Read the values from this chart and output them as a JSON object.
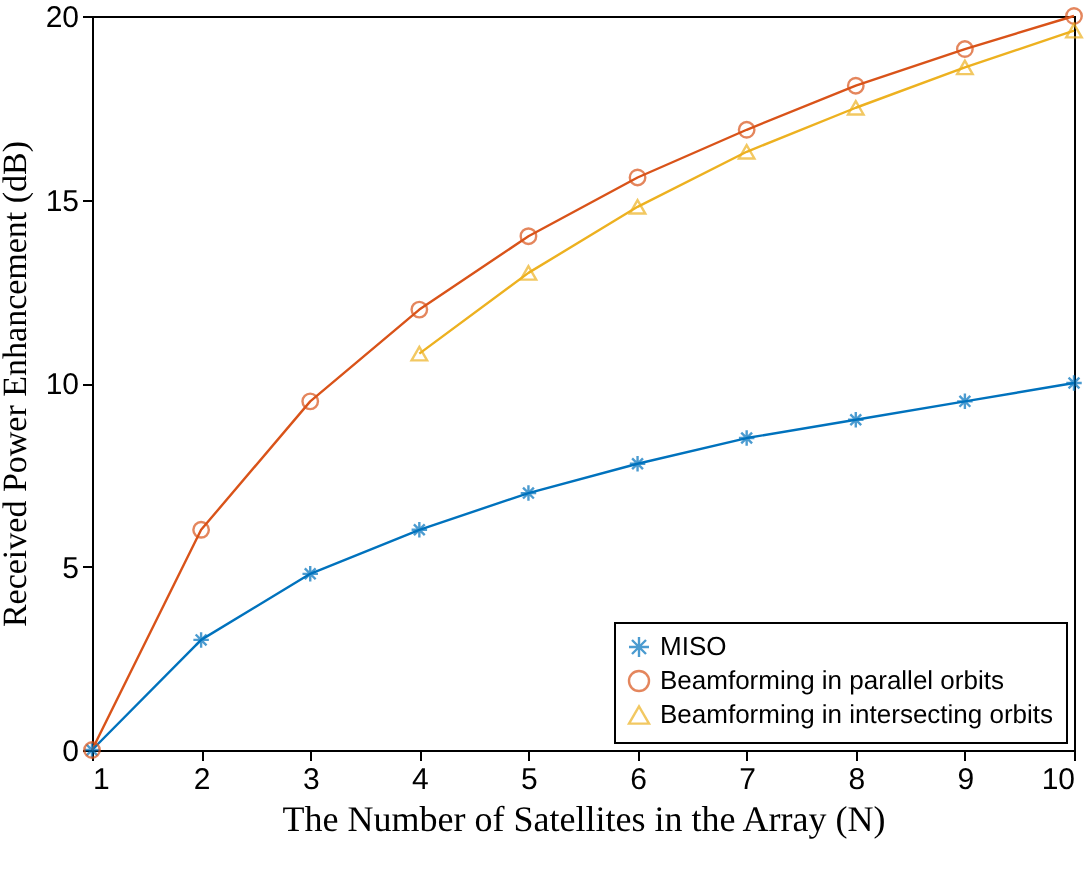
{
  "chart_data": {
    "type": "line",
    "xlabel": "The Number of Satellites in the Array (N)",
    "ylabel": "Received Power Enhancement (dB)",
    "xlim": [
      1,
      10
    ],
    "ylim": [
      0,
      20
    ],
    "xticks": [
      1,
      2,
      3,
      4,
      5,
      6,
      7,
      8,
      9,
      10
    ],
    "yticks": [
      0,
      5,
      10,
      15,
      20
    ],
    "grid": false,
    "legend": "bottom right",
    "line_style": "solid",
    "series": [
      {
        "name": "MISO",
        "color": "#0072bd",
        "marker": "cross",
        "x": [
          1,
          2,
          3,
          4,
          5,
          6,
          7,
          8,
          9,
          10
        ],
        "values": [
          0,
          3.0,
          4.8,
          6.0,
          7.0,
          7.8,
          8.5,
          9.0,
          9.5,
          10.0
        ]
      },
      {
        "name": "Beamforming in parallel orbits",
        "color": "#d95319",
        "marker": "circle",
        "x": [
          1,
          2,
          3,
          4,
          5,
          6,
          7,
          8,
          9,
          10
        ],
        "values": [
          0,
          6.0,
          9.5,
          12.0,
          14.0,
          15.6,
          16.9,
          18.1,
          19.1,
          20.0
        ]
      },
      {
        "name": "Beamforming in intersecting orbits",
        "color": "#edb120",
        "marker": "triangle",
        "x": [
          4,
          5,
          6,
          7,
          8,
          9,
          10
        ],
        "values": [
          10.8,
          13.0,
          14.8,
          16.3,
          17.5,
          18.6,
          19.6
        ]
      }
    ]
  }
}
